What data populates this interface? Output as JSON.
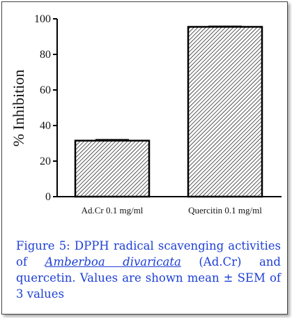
{
  "chart_data": {
    "type": "bar",
    "categories": [
      "Ad.Cr 0.1 mg/ml",
      "Quercitin 0.1 mg/ml"
    ],
    "values": [
      31.5,
      95.5
    ],
    "errors": [
      0.6,
      0.4
    ],
    "title": "",
    "xlabel": "",
    "ylabel": "% Inhibition",
    "ylim": [
      0,
      100
    ],
    "yticks": [
      "0",
      "20",
      "40",
      "60",
      "80",
      "100"
    ],
    "bar_pattern": "diagonal-hatch",
    "bar_color": "#000000"
  },
  "caption": {
    "prefix": "Figure 5: DPPH radical scavenging activities of",
    "species": "Amberboa divaricata",
    "suffix": "(Ad.Cr) and quercetin. Values are shown mean ± SEM of 3 values"
  }
}
